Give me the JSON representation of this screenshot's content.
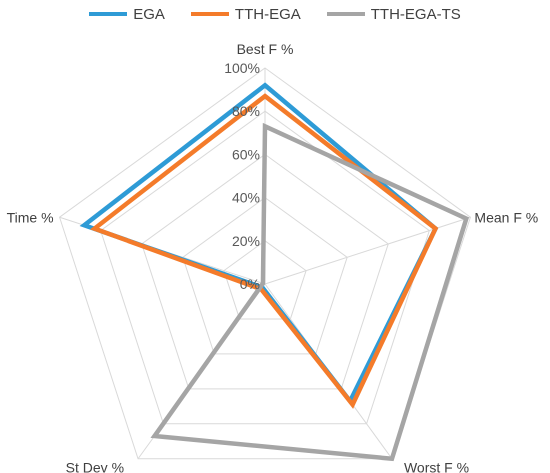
{
  "chart_data": {
    "type": "radar",
    "categories": [
      "Best F %",
      "Mean F %",
      "Worst F %",
      "St Dev %",
      "Time %"
    ],
    "tick_labels": [
      "0%",
      "20%",
      "40%",
      "60%",
      "80%",
      "100%"
    ],
    "rlim": [
      0,
      100
    ],
    "grid": true,
    "legend_position": "top",
    "series": [
      {
        "name": "EGA",
        "color": "#2E9BD6",
        "values": [
          92,
          83,
          67,
          2,
          88
        ]
      },
      {
        "name": "TTH-EGA",
        "color": "#F47B2A",
        "values": [
          87,
          83,
          69,
          3,
          83
        ]
      },
      {
        "name": "TTH-EGA-TS",
        "color": "#A5A5A5",
        "values": [
          73,
          98,
          100,
          87,
          1
        ]
      }
    ]
  }
}
